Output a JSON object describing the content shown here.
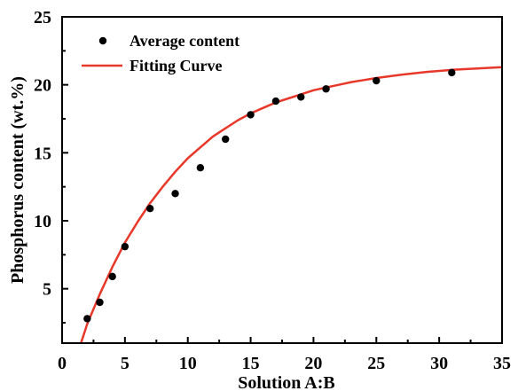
{
  "chart_data": {
    "type": "scatter",
    "xlabel": "Solution A:B",
    "ylabel": "Phosphorus content (wt.%)",
    "xlim": [
      0,
      35
    ],
    "ylim": [
      1,
      25
    ],
    "xticks": [
      0,
      5,
      10,
      15,
      20,
      25,
      30,
      35
    ],
    "yticks": [
      5,
      10,
      15,
      20,
      25
    ],
    "grid": false,
    "legend_position": "top-left",
    "series": [
      {
        "name": "Average content",
        "kind": "scatter",
        "color": "#000000",
        "points": [
          {
            "x": 2,
            "y": 2.8
          },
          {
            "x": 3,
            "y": 4.0
          },
          {
            "x": 4,
            "y": 5.9
          },
          {
            "x": 5,
            "y": 8.1
          },
          {
            "x": 7,
            "y": 10.9
          },
          {
            "x": 9,
            "y": 12.0
          },
          {
            "x": 11,
            "y": 13.9
          },
          {
            "x": 13,
            "y": 16.0
          },
          {
            "x": 15,
            "y": 17.8
          },
          {
            "x": 17,
            "y": 18.8
          },
          {
            "x": 19,
            "y": 19.1
          },
          {
            "x": 21,
            "y": 19.7
          },
          {
            "x": 25,
            "y": 20.3
          },
          {
            "x": 31,
            "y": 20.9
          }
        ]
      },
      {
        "name": "Fitting Curve",
        "kind": "line",
        "color": "#e8382a",
        "points": [
          {
            "x": 1.5,
            "y": 1.0
          },
          {
            "x": 2,
            "y": 2.4
          },
          {
            "x": 3,
            "y": 4.6
          },
          {
            "x": 4,
            "y": 6.6
          },
          {
            "x": 5,
            "y": 8.4
          },
          {
            "x": 6,
            "y": 9.9
          },
          {
            "x": 7,
            "y": 11.3
          },
          {
            "x": 8,
            "y": 12.5
          },
          {
            "x": 9,
            "y": 13.6
          },
          {
            "x": 10,
            "y": 14.6
          },
          {
            "x": 11,
            "y": 15.4
          },
          {
            "x": 12,
            "y": 16.2
          },
          {
            "x": 13,
            "y": 16.8
          },
          {
            "x": 14,
            "y": 17.4
          },
          {
            "x": 15,
            "y": 17.9
          },
          {
            "x": 16,
            "y": 18.3
          },
          {
            "x": 17,
            "y": 18.7
          },
          {
            "x": 18,
            "y": 19.0
          },
          {
            "x": 19,
            "y": 19.3
          },
          {
            "x": 20,
            "y": 19.6
          },
          {
            "x": 21,
            "y": 19.8
          },
          {
            "x": 22,
            "y": 20.0
          },
          {
            "x": 23,
            "y": 20.2
          },
          {
            "x": 24,
            "y": 20.35
          },
          {
            "x": 25,
            "y": 20.5
          },
          {
            "x": 27,
            "y": 20.75
          },
          {
            "x": 29,
            "y": 20.95
          },
          {
            "x": 31,
            "y": 21.1
          },
          {
            "x": 33,
            "y": 21.2
          },
          {
            "x": 35,
            "y": 21.3
          }
        ]
      }
    ]
  }
}
